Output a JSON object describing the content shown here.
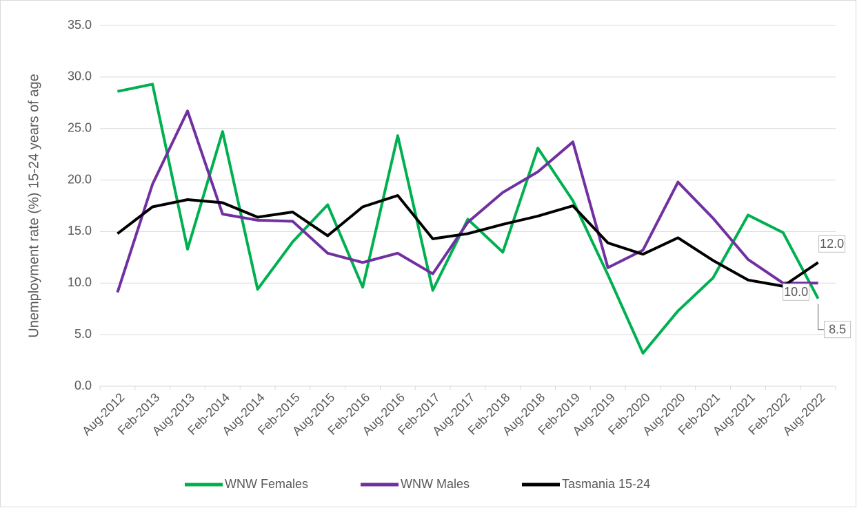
{
  "chart_data": {
    "type": "line",
    "y_label": "Unemployment rate (%)  15-24 years of age",
    "categories": [
      "Aug-2012",
      "Feb-2013",
      "Aug-2013",
      "Feb-2014",
      "Aug-2014",
      "Feb-2015",
      "Aug-2015",
      "Feb-2016",
      "Aug-2016",
      "Feb-2017",
      "Aug-2017",
      "Feb-2018",
      "Aug-2018",
      "Feb-2019",
      "Aug-2019",
      "Feb-2020",
      "Aug-2020",
      "Feb-2021",
      "Aug-2021",
      "Feb-2022",
      "Aug-2022"
    ],
    "series": [
      {
        "name": "WNW Females",
        "color": "#00b050",
        "values": [
          28.6,
          29.3,
          13.3,
          24.7,
          9.4,
          14.0,
          17.6,
          9.6,
          24.3,
          9.3,
          16.2,
          13.0,
          23.1,
          18.0,
          10.8,
          3.2,
          7.3,
          10.5,
          16.6,
          14.9,
          8.5
        ],
        "value_labels": [
          null,
          null,
          null,
          null,
          null,
          null,
          null,
          null,
          null,
          null,
          null,
          null,
          null,
          null,
          null,
          null,
          null,
          null,
          null,
          null,
          "8.5"
        ]
      },
      {
        "name": "WNW Males",
        "color": "#7030a0",
        "values": [
          9.1,
          19.6,
          26.7,
          16.7,
          16.1,
          16.0,
          12.9,
          12.0,
          12.9,
          10.9,
          15.9,
          18.8,
          20.8,
          23.7,
          11.5,
          13.2,
          19.8,
          16.3,
          12.3,
          10.0,
          10.0
        ],
        "value_labels": [
          null,
          null,
          null,
          null,
          null,
          null,
          null,
          null,
          null,
          null,
          null,
          null,
          null,
          null,
          null,
          null,
          null,
          null,
          null,
          null,
          "10.0"
        ]
      },
      {
        "name": "Tasmania 15-24",
        "color": "#000000",
        "values": [
          14.8,
          17.4,
          18.1,
          17.8,
          16.4,
          16.9,
          14.6,
          17.4,
          18.5,
          14.3,
          14.8,
          15.7,
          16.5,
          17.5,
          13.9,
          12.8,
          14.4,
          12.2,
          10.3,
          9.7,
          12.0
        ],
        "value_labels": [
          null,
          null,
          null,
          null,
          null,
          null,
          null,
          null,
          null,
          null,
          null,
          null,
          null,
          null,
          null,
          null,
          null,
          null,
          null,
          null,
          "12.0"
        ]
      }
    ],
    "ylim": [
      0,
      35
    ],
    "yticks": [
      {
        "value": 0,
        "label": "0.0"
      },
      {
        "value": 5,
        "label": "5.0"
      },
      {
        "value": 10,
        "label": "10.0"
      },
      {
        "value": 15,
        "label": "15.0"
      },
      {
        "value": 20,
        "label": "20.0"
      },
      {
        "value": 25,
        "label": "25.0"
      },
      {
        "value": 30,
        "label": "30.0"
      },
      {
        "value": 35,
        "label": "35.0"
      }
    ],
    "grid": true,
    "legend": "bottom"
  }
}
